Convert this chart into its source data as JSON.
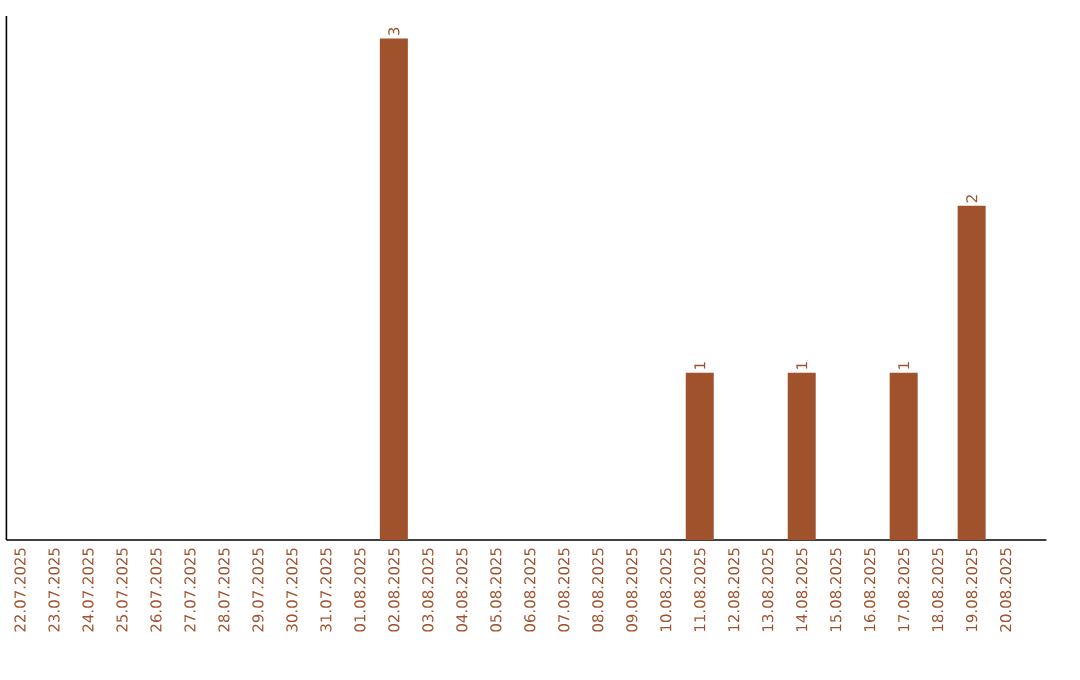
{
  "chart_data": {
    "type": "bar",
    "categories": [
      "22.07.2025",
      "23.07.2025",
      "24.07.2025",
      "25.07.2025",
      "26.07.2025",
      "27.07.2025",
      "28.07.2025",
      "29.07.2025",
      "30.07.2025",
      "31.07.2025",
      "01.08.2025",
      "02.08.2025",
      "03.08.2025",
      "04.08.2025",
      "05.08.2025",
      "06.08.2025",
      "07.08.2025",
      "08.08.2025",
      "09.08.2025",
      "10.08.2025",
      "11.08.2025",
      "12.08.2025",
      "13.08.2025",
      "14.08.2025",
      "15.08.2025",
      "16.08.2025",
      "17.08.2025",
      "18.08.2025",
      "19.08.2025",
      "20.08.2025"
    ],
    "values": [
      0,
      0,
      0,
      0,
      0,
      0,
      0,
      0,
      0,
      0,
      0,
      3,
      0,
      0,
      0,
      0,
      0,
      0,
      0,
      0,
      1,
      0,
      0,
      1,
      0,
      0,
      1,
      0,
      2,
      0
    ],
    "value_labels": [
      null,
      null,
      null,
      null,
      null,
      null,
      null,
      null,
      null,
      null,
      null,
      "3",
      null,
      null,
      null,
      null,
      null,
      null,
      null,
      null,
      "1",
      null,
      null,
      "1",
      null,
      null,
      "1",
      null,
      "2",
      null
    ],
    "color": "#a0522d"
  }
}
